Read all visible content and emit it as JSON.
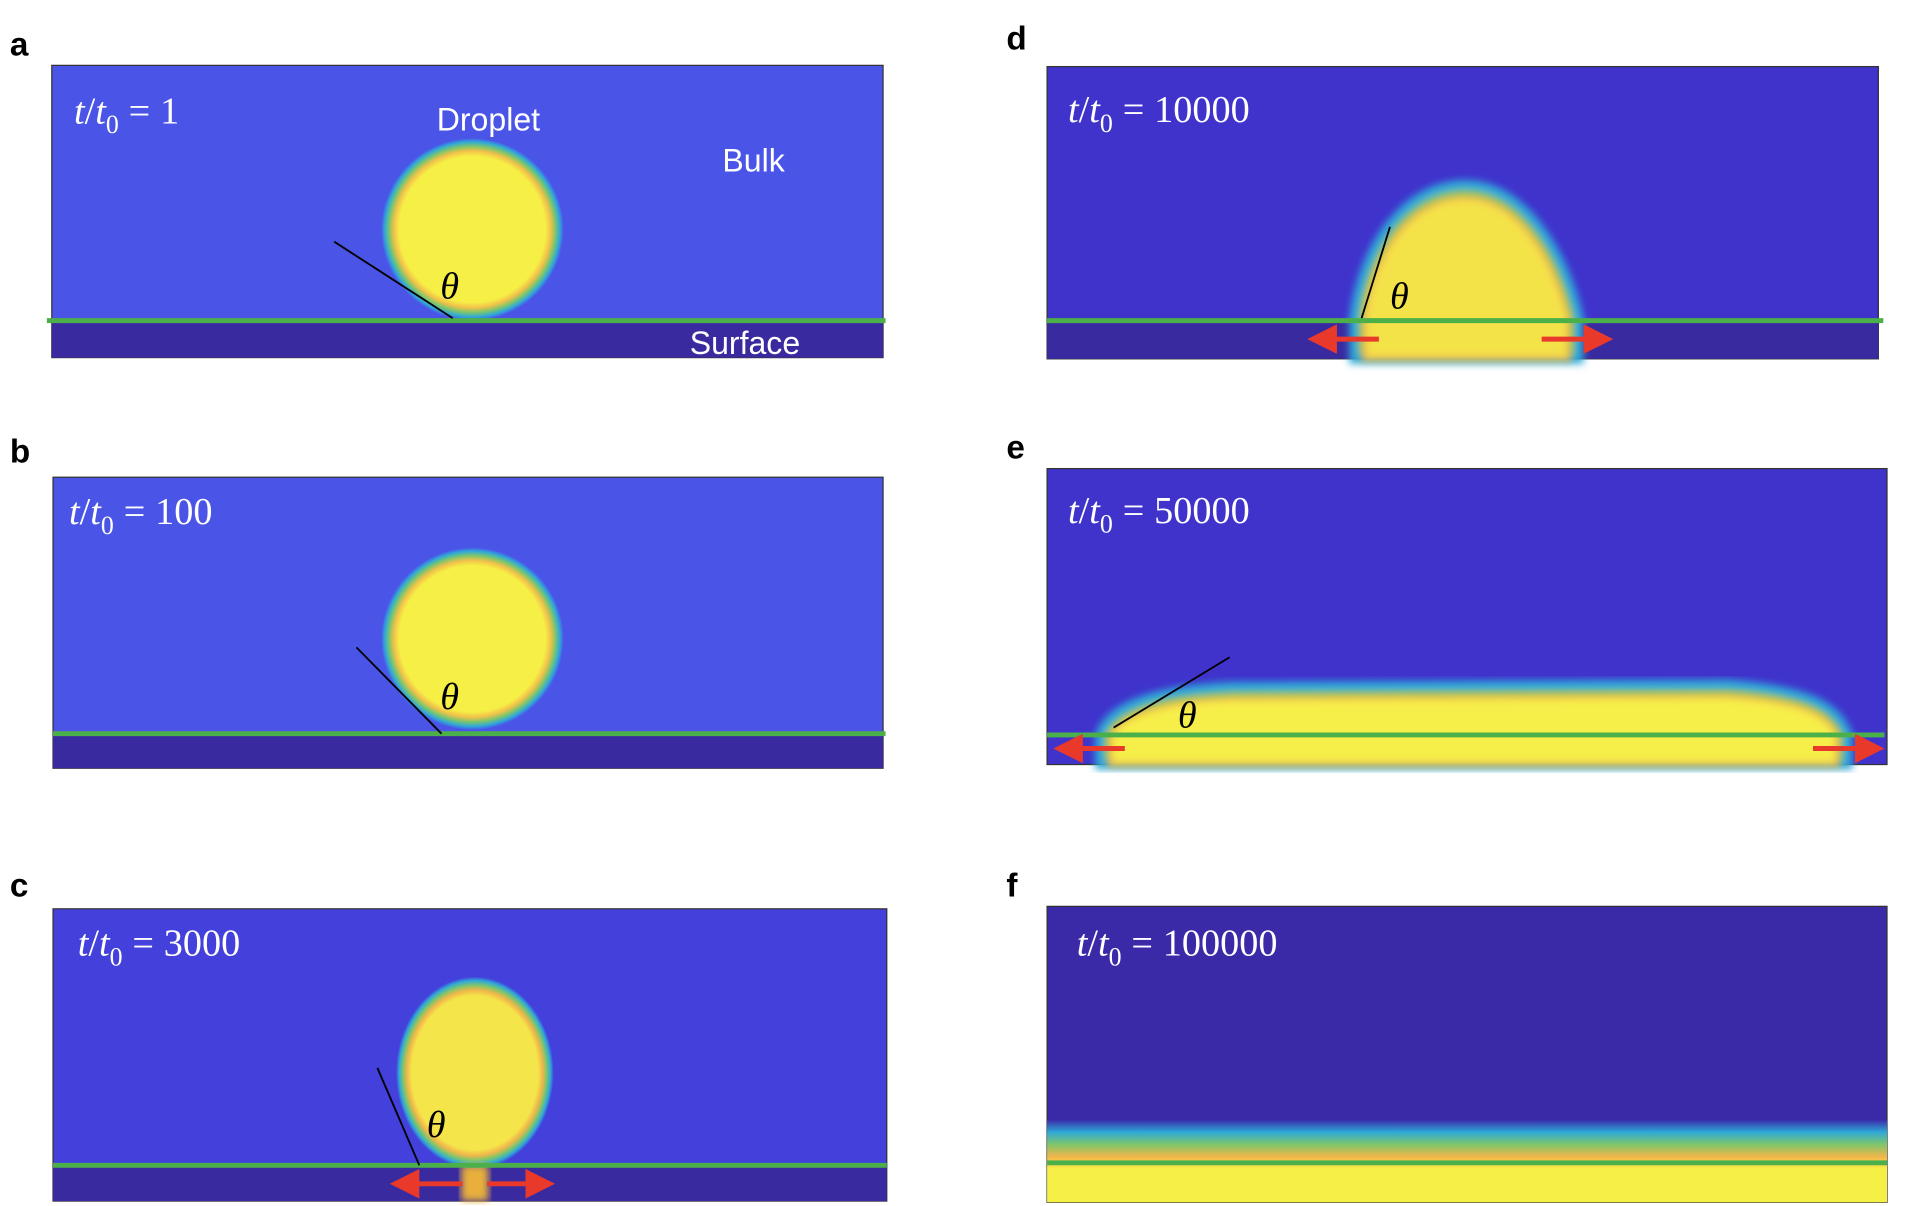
{
  "figure": {
    "symbol": {
      "t": "t",
      "slash": "/",
      "sub": "0",
      "eq": "=",
      "theta": "θ"
    },
    "panels": [
      {
        "letter": "a",
        "time": "1"
      },
      {
        "letter": "b",
        "time": "100"
      },
      {
        "letter": "c",
        "time": "3000"
      },
      {
        "letter": "d",
        "time": "10000"
      },
      {
        "letter": "e",
        "time": "50000"
      },
      {
        "letter": "f",
        "time": "100000"
      }
    ],
    "labels": {
      "droplet": "Droplet",
      "bulk": "Bulk",
      "surface": "Surface"
    }
  }
}
